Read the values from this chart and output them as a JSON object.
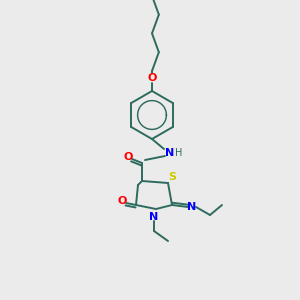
{
  "background_color": "#ebebeb",
  "bond_color": "#2d6b5e",
  "atom_colors": {
    "O": "#ff0000",
    "N": "#0000ff",
    "S": "#cccc00",
    "H": "#2d6b5e"
  },
  "figsize": [
    3.0,
    3.0
  ],
  "dpi": 100,
  "lw": 1.4
}
